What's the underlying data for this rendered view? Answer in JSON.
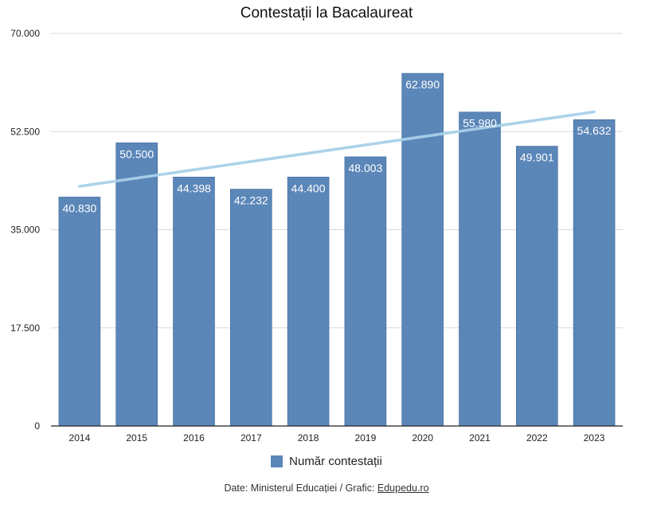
{
  "chart_data": {
    "type": "bar",
    "title": "Contestații la Bacalaureat",
    "categories": [
      "2014",
      "2015",
      "2016",
      "2017",
      "2018",
      "2019",
      "2020",
      "2021",
      "2022",
      "2023"
    ],
    "series": [
      {
        "name": "Număr contestații",
        "values": [
          40830,
          50500,
          44398,
          42232,
          44400,
          48003,
          62890,
          55980,
          49901,
          54632
        ],
        "labels": [
          "40.830",
          "50.500",
          "44.398",
          "42.232",
          "44.400",
          "48.003",
          "62.890",
          "55.980",
          "49.901",
          "54.632"
        ]
      }
    ],
    "trendline": {
      "type": "linear"
    },
    "ylim": [
      0,
      70000
    ],
    "yticks": [
      0,
      17500,
      35000,
      52500,
      70000
    ],
    "ytick_labels": [
      "0",
      "17.500",
      "35.000",
      "52.500",
      "70.000"
    ],
    "grid": true,
    "legend": "bottom",
    "colors": {
      "bar": "#5b86b8",
      "trend": "#a8d0ea",
      "label": "#ffffff"
    }
  },
  "source": {
    "prefix": "Date: Ministerul Educației / Grafic: ",
    "link": "Edupedu.ro"
  }
}
